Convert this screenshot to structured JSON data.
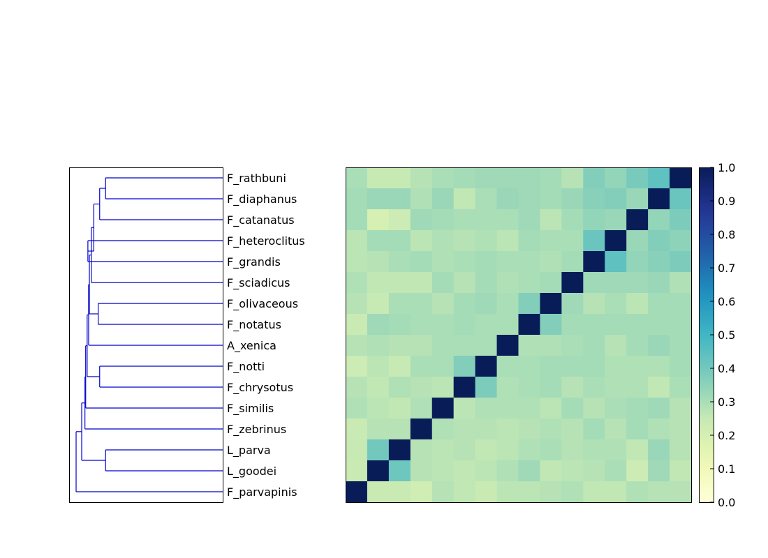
{
  "chart_data": {
    "type": "heatmap",
    "title": "",
    "xlabel": "",
    "ylabel": "",
    "labels_top_to_bottom": [
      "F_rathbuni",
      "F_diaphanus",
      "F_catanatus",
      "F_heteroclitus",
      "F_grandis",
      "F_sciadicus",
      "F_olivaceous",
      "F_notatus",
      "A_xenica",
      "F_notti",
      "F_chrysotus",
      "F_similis",
      "F_zebrinus",
      "L_parva",
      "L_goodei",
      "F_parvapinis"
    ],
    "matrix": [
      [
        0.3,
        0.25,
        0.25,
        0.28,
        0.3,
        0.31,
        0.32,
        0.32,
        0.32,
        0.31,
        0.28,
        0.37,
        0.34,
        0.39,
        0.44,
        1.0
      ],
      [
        0.31,
        0.33,
        0.33,
        0.29,
        0.33,
        0.26,
        0.3,
        0.33,
        0.32,
        0.31,
        0.33,
        0.36,
        0.37,
        0.33,
        1.0,
        0.42
      ],
      [
        0.31,
        0.2,
        0.23,
        0.32,
        0.31,
        0.3,
        0.3,
        0.3,
        0.32,
        0.27,
        0.31,
        0.34,
        0.33,
        1.0,
        0.34,
        0.38
      ],
      [
        0.27,
        0.31,
        0.31,
        0.27,
        0.29,
        0.28,
        0.29,
        0.27,
        0.31,
        0.3,
        0.3,
        0.42,
        1.0,
        0.33,
        0.37,
        0.35
      ],
      [
        0.27,
        0.28,
        0.3,
        0.31,
        0.29,
        0.3,
        0.31,
        0.3,
        0.3,
        0.29,
        0.31,
        1.0,
        0.44,
        0.34,
        0.36,
        0.38
      ],
      [
        0.29,
        0.26,
        0.26,
        0.26,
        0.31,
        0.28,
        0.31,
        0.29,
        0.3,
        0.31,
        1.0,
        0.32,
        0.32,
        0.32,
        0.33,
        0.29
      ],
      [
        0.28,
        0.25,
        0.3,
        0.3,
        0.28,
        0.31,
        0.32,
        0.3,
        0.37,
        1.0,
        0.32,
        0.28,
        0.3,
        0.27,
        0.31,
        0.31
      ],
      [
        0.24,
        0.32,
        0.31,
        0.3,
        0.3,
        0.31,
        0.3,
        0.3,
        1.0,
        0.37,
        0.31,
        0.31,
        0.31,
        0.31,
        0.31,
        0.31
      ],
      [
        0.28,
        0.29,
        0.28,
        0.28,
        0.3,
        0.3,
        0.3,
        1.0,
        0.29,
        0.29,
        0.3,
        0.31,
        0.28,
        0.31,
        0.33,
        0.31
      ],
      [
        0.23,
        0.27,
        0.25,
        0.3,
        0.3,
        0.37,
        1.0,
        0.3,
        0.3,
        0.31,
        0.31,
        0.31,
        0.29,
        0.29,
        0.29,
        0.31
      ],
      [
        0.28,
        0.26,
        0.29,
        0.28,
        0.27,
        1.0,
        0.38,
        0.29,
        0.3,
        0.31,
        0.28,
        0.3,
        0.29,
        0.29,
        0.26,
        0.3
      ],
      [
        0.29,
        0.27,
        0.26,
        0.29,
        1.0,
        0.27,
        0.29,
        0.29,
        0.29,
        0.27,
        0.31,
        0.28,
        0.3,
        0.31,
        0.32,
        0.28
      ],
      [
        0.24,
        0.28,
        0.28,
        1.0,
        0.29,
        0.28,
        0.28,
        0.27,
        0.28,
        0.29,
        0.28,
        0.31,
        0.28,
        0.31,
        0.29,
        0.28
      ],
      [
        0.25,
        0.4,
        1.0,
        0.28,
        0.27,
        0.28,
        0.26,
        0.27,
        0.29,
        0.3,
        0.28,
        0.29,
        0.29,
        0.26,
        0.33,
        0.28
      ],
      [
        0.24,
        1.0,
        0.41,
        0.28,
        0.27,
        0.26,
        0.27,
        0.29,
        0.32,
        0.26,
        0.27,
        0.28,
        0.3,
        0.23,
        0.32,
        0.26
      ],
      [
        1.0,
        0.24,
        0.24,
        0.22,
        0.28,
        0.26,
        0.24,
        0.27,
        0.27,
        0.28,
        0.29,
        0.26,
        0.26,
        0.29,
        0.28,
        0.28
      ]
    ],
    "colorbar": {
      "colormap": "YlGnBu",
      "range": [
        0.0,
        1.0
      ],
      "ticks": [
        "0.0",
        "0.1",
        "0.2",
        "0.3",
        "0.4",
        "0.5",
        "0.6",
        "0.7",
        "0.8",
        "0.9",
        "1.0"
      ]
    },
    "dendrogram": {
      "color": "#0000cc",
      "merges": [
        [
          "F_notti",
          "F_chrysotus",
          0.84
        ],
        [
          "F_olivaceous",
          "F_notatus",
          0.85
        ],
        [
          "L_parva",
          "L_goodei",
          0.8
        ],
        [
          "F_heteroclitus",
          "F_grandis",
          0.92
        ],
        [
          "F_rathbuni",
          "F_diaphanus",
          0.8
        ],
        [
          "c4",
          "F_catanatus",
          0.84
        ],
        [
          "c5",
          "c3",
          0.88
        ],
        [
          "c6",
          "F_sciadicus",
          0.897
        ],
        [
          "c7",
          "c1",
          0.91
        ],
        [
          "c8",
          "A_xenica",
          0.915
        ],
        [
          "c9",
          "c0",
          0.925
        ],
        [
          "c10",
          "F_similis",
          0.935
        ],
        [
          "c11",
          "F_zebrinus",
          0.94
        ],
        [
          "c12",
          "c2",
          0.962
        ],
        [
          "c13",
          "F_parvapinis",
          1.0
        ]
      ]
    }
  }
}
